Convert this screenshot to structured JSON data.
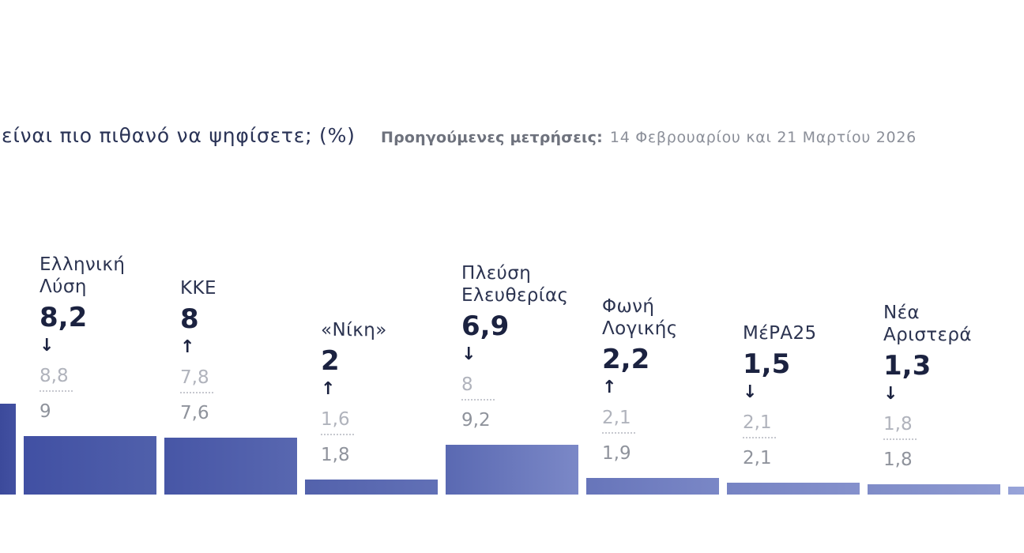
{
  "chart_data": {
    "type": "bar",
    "title": "είναι πιο πιθανό να ψηφίσετε; (%)",
    "previous_label": "Προηγούμενες μετρήσεις:",
    "previous_dates": "14 Φεβρουαρίου και 21 Μαρτίου 2026",
    "categories": [
      "",
      "Ελληνική Λύση",
      "ΚΚΕ",
      "«Νίκη»",
      "Πλεύση Ελευθερίας",
      "Φωνή Λογικής",
      "ΜέΡΑ25",
      "Νέα Αριστερά",
      ""
    ],
    "values": [
      12.8,
      8.2,
      8,
      2,
      6.9,
      2.2,
      1.5,
      1.3,
      1.0
    ],
    "value_labels": [
      "",
      "8,2",
      "8",
      "2",
      "6,9",
      "2,2",
      "1,5",
      "1,3",
      ""
    ],
    "trend_symbols": [
      "",
      "↓",
      "↑",
      "↑",
      "↓",
      "↑",
      "↓",
      "↓",
      ""
    ],
    "trend_icons": [
      "",
      "arrow-down-icon",
      "arrow-up-icon",
      "arrow-up-icon",
      "arrow-down-icon",
      "arrow-up-icon",
      "arrow-down-icon",
      "arrow-down-icon",
      ""
    ],
    "previous_values": [
      [],
      [
        "8,8",
        "9"
      ],
      [
        "7,8",
        "7,6"
      ],
      [
        "1,6",
        "1,8"
      ],
      [
        "8",
        "9,2"
      ],
      [
        "2,1",
        "1,9"
      ],
      [
        "2,1",
        "2,1"
      ],
      [
        "1,8",
        "1,8"
      ],
      []
    ],
    "bar_colors": [
      [
        "#3c4a9b",
        "#4250a1"
      ],
      [
        "#4150a3",
        "#5060ab"
      ],
      [
        "#4756a6",
        "#5867b0"
      ],
      [
        "#5362ac",
        "#6170b6"
      ],
      [
        "#5a69b2",
        "#7b88c7"
      ],
      [
        "#6775ba",
        "#7a87c6"
      ],
      [
        "#7683c3",
        "#8591cc"
      ],
      [
        "#7f8cc8",
        "#8e9ad2"
      ],
      [
        "#95a1d7",
        "#98a4d9"
      ]
    ]
  }
}
